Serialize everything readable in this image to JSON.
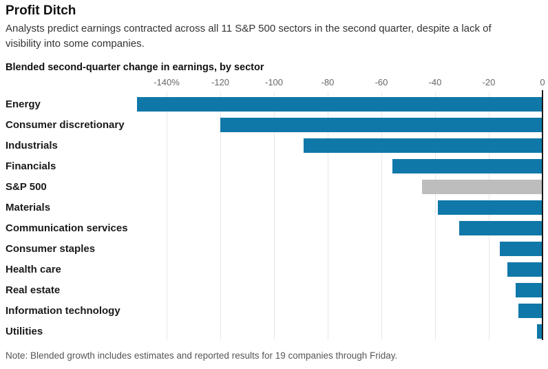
{
  "header": {
    "title": "Profit Ditch",
    "subtitle": "Analysts predict earnings contracted across all 11 S&P 500 sectors in the second quarter, despite a lack of visibility into some companies."
  },
  "footer": {
    "note": "Note: Blended growth includes estimates and reported results for 19 companies through Friday."
  },
  "chart_data": {
    "type": "bar",
    "orientation": "horizontal",
    "title": "Blended second-quarter change in earnings, by sector",
    "categories": [
      "Energy",
      "Consumer discretionary",
      "Industrials",
      "Financials",
      "S&P 500",
      "Materials",
      "Communication services",
      "Consumer staples",
      "Health care",
      "Real estate",
      "Information technology",
      "Utilities"
    ],
    "values": [
      -151,
      -120,
      -89,
      -56,
      -45,
      -39,
      -31,
      -16,
      -13,
      -10,
      -9,
      -2
    ],
    "unit": "%",
    "xlim": [
      -151,
      0
    ],
    "x_ticks": [
      -140,
      -120,
      -100,
      -80,
      -60,
      -40,
      -20,
      0
    ],
    "x_tick_labels": [
      "-140%",
      "-120",
      "-100",
      "-80",
      "-60",
      "-40",
      "-20",
      "0"
    ],
    "highlight_category": "S&P 500",
    "highlight_index": 4,
    "colors": {
      "bar": "#0f78a8",
      "highlight_bar": "#bdbdbd",
      "gridline": "#e6e6e6",
      "zero_line": "#1a1a1a"
    },
    "grid": true,
    "legend": false
  }
}
